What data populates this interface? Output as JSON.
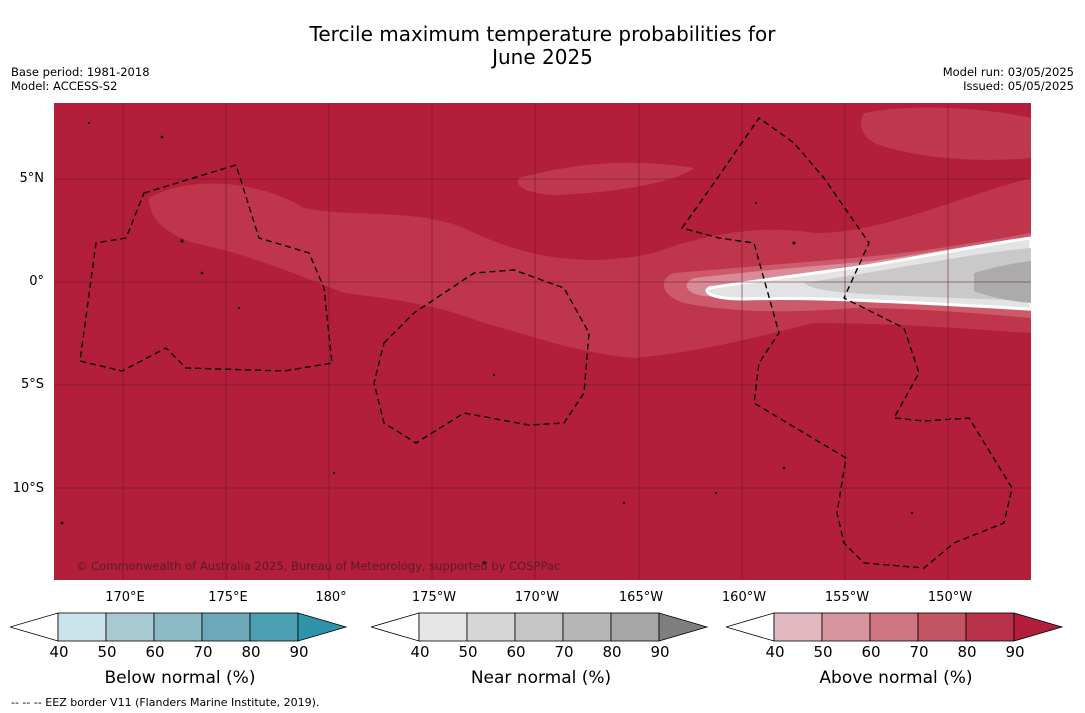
{
  "title": {
    "line1": "Tercile maximum temperature probabilities for",
    "line2": "June 2025"
  },
  "meta_left": {
    "base_period": "Base period: 1981-2018",
    "model": "Model: ACCESS-S2"
  },
  "meta_right": {
    "model_run": "Model run: 03/05/2025",
    "issued": "Issued: 05/05/2025"
  },
  "map": {
    "lat_labels": [
      "5°N",
      "0°",
      "5°S",
      "10°S"
    ],
    "lon_labels": [
      "170°E",
      "175°E",
      "180°",
      "175°W",
      "170°W",
      "165°W",
      "160°W",
      "155°W",
      "150°W"
    ],
    "credit": "© Commonwealth of Australia 2025, Bureau of Meteorology, supported by COSPPac",
    "background_color": "#b31e3a"
  },
  "colorbars": [
    {
      "label": "Below normal (%)",
      "ticks": [
        "40",
        "50",
        "60",
        "70",
        "80",
        "90"
      ],
      "colors": [
        "#ffffff",
        "#cbe3ea",
        "#a9c9d2",
        "#8bb9c6",
        "#6ba8b9",
        "#4aa0b2",
        "#2e93ab"
      ]
    },
    {
      "label": "Near normal (%)",
      "ticks": [
        "40",
        "50",
        "60",
        "70",
        "80",
        "90"
      ],
      "colors": [
        "#ffffff",
        "#e6e6e6",
        "#d6d6d6",
        "#c6c6c6",
        "#b6b6b6",
        "#a6a6a6",
        "#7f7f7f"
      ]
    },
    {
      "label": "Above normal (%)",
      "ticks": [
        "40",
        "50",
        "60",
        "70",
        "80",
        "90"
      ],
      "colors": [
        "#ffffff",
        "#e2b9c0",
        "#d7959f",
        "#cd7682",
        "#c35563",
        "#b8334a",
        "#b31e3a"
      ]
    }
  ],
  "footer": "--  --  -- EEZ border V11 (Flanders Marine Institute, 2019)."
}
